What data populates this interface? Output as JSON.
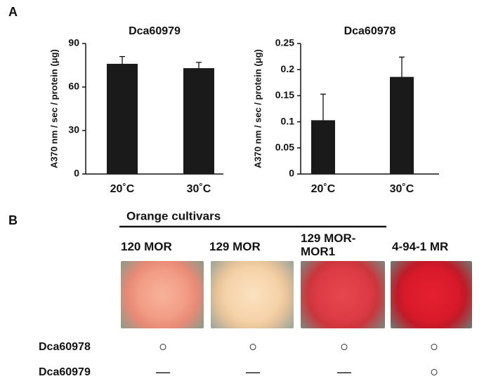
{
  "panel_labels": [
    "A",
    "B"
  ],
  "chart_data": [
    {
      "type": "bar",
      "title": "Dca60979",
      "y_label": "A370 nm / sec / protein (μg)",
      "categories": [
        "20˚C",
        "30˚C"
      ],
      "values": [
        76,
        73
      ],
      "errors": [
        5,
        4
      ],
      "color": "#1a1a1a",
      "ylim": [
        0,
        90
      ],
      "yticks": [
        0,
        30,
        60,
        90
      ]
    },
    {
      "type": "bar",
      "title": "Dca60978",
      "y_label": "A370 nm / sec / protein (μg)",
      "categories": [
        "20˚C",
        "30˚C"
      ],
      "values": [
        0.103,
        0.186
      ],
      "errors": [
        0.05,
        0.038
      ],
      "color": "#1a1a1a",
      "ylim": [
        0,
        0.25
      ],
      "yticks": [
        0,
        0.05,
        0.1,
        0.15,
        0.2,
        0.25
      ]
    }
  ],
  "panel_b": {
    "group_label": "Orange cultivars",
    "cultivars": [
      "120 MOR",
      "129 MOR",
      "129 MOR-MOR1",
      "4-94-1 MR"
    ],
    "rows": [
      {
        "gene": "Dca60978",
        "marks": [
          "○",
          "○",
          "○",
          "○"
        ]
      },
      {
        "gene": "Dca60979",
        "marks": [
          "—",
          "—",
          "—",
          "○"
        ]
      }
    ]
  }
}
